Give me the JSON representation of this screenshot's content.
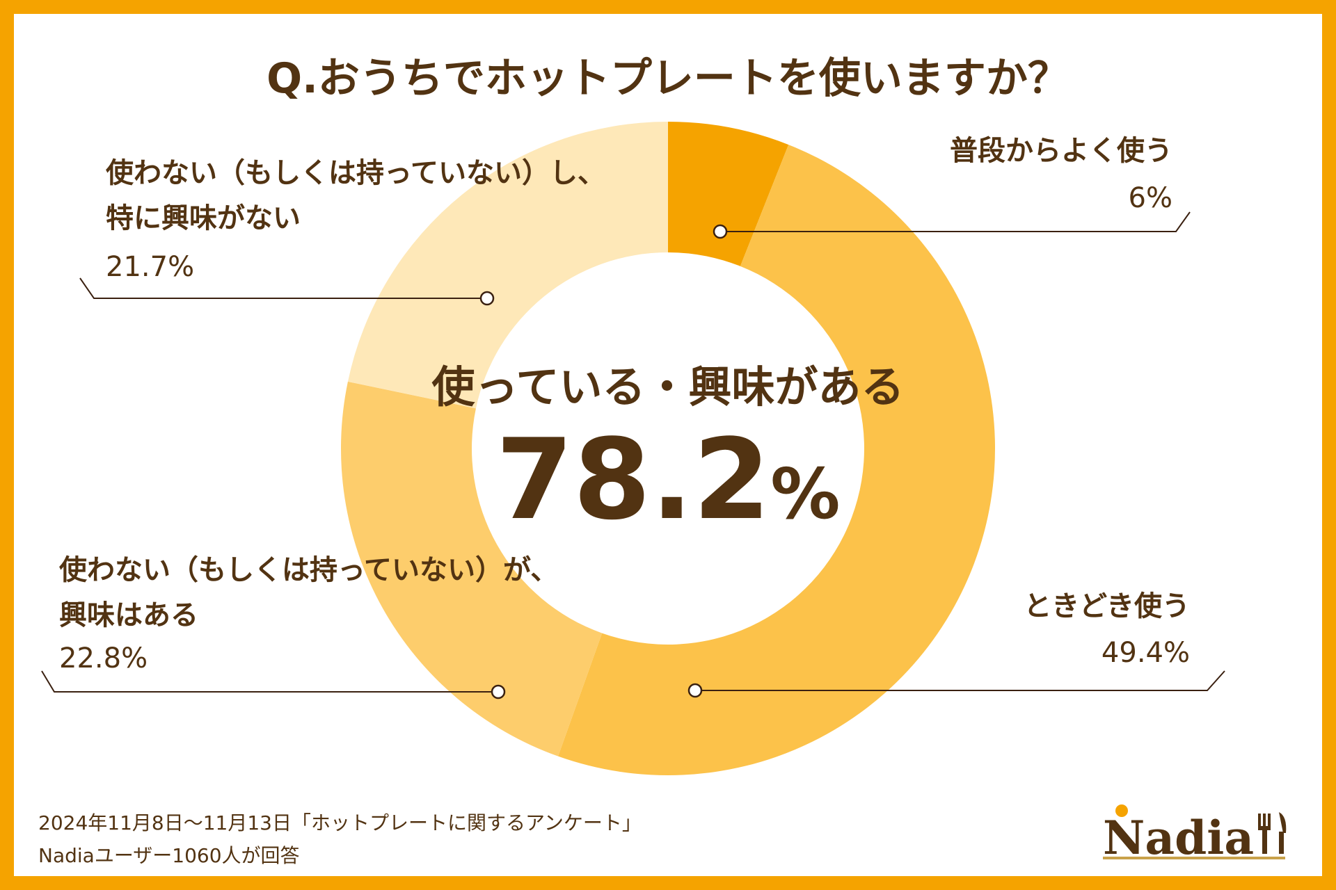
{
  "title": "Q.おうちでホットプレートを使いますか？",
  "center": {
    "label": "使っている・興味がある",
    "value": "78.2",
    "unit": "%"
  },
  "chart_data": {
    "type": "pie",
    "donut": true,
    "title": "Q.おうちでホットプレートを使いますか？",
    "slices": [
      {
        "label": "普段からよく使う",
        "lines": [
          "普段からよく使う"
        ],
        "value": 6.0,
        "display": "6%",
        "color": "#F5A300"
      },
      {
        "label": "ときどき使う",
        "lines": [
          "ときどき使う"
        ],
        "value": 49.4,
        "display": "49.4%",
        "color": "#FCC24A"
      },
      {
        "label": "使わない（もしくは持っていない）が、興味はある",
        "lines": [
          "使わない（もしくは持っていない）が、",
          "興味はある"
        ],
        "value": 22.8,
        "display": "22.8%",
        "color": "#FDCD6C"
      },
      {
        "label": "使わない（もしくは持っていない）し、特に興味がない",
        "lines": [
          "使わない（もしくは持っていない）し、",
          "特に興味がない"
        ],
        "value": 21.7,
        "display": "21.7%",
        "color": "#FEE8B8"
      }
    ]
  },
  "footer": {
    "line1": "2024年11月8日〜11月13日「ホットプレートに関するアンケート」",
    "line2": "Nadiaユーザー1060人が回答"
  },
  "logo": {
    "text": "Nadia",
    "accent_color": "#F5A300"
  },
  "colors": {
    "border": "#F5A300",
    "text": "#523312",
    "background": "#FFFFFF"
  }
}
